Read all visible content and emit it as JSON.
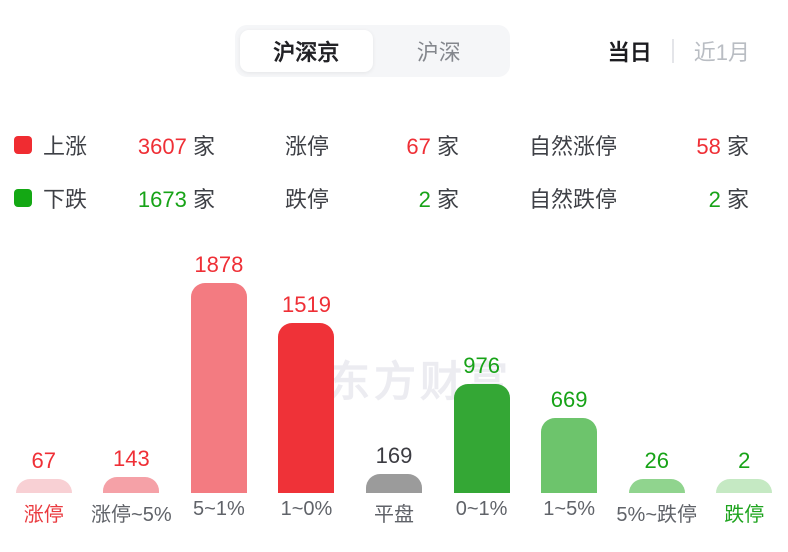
{
  "header": {
    "tabs": [
      {
        "label": "沪深京",
        "selected": true
      },
      {
        "label": "沪深",
        "selected": false
      }
    ],
    "period": {
      "current": "当日",
      "alternative": "近1月"
    }
  },
  "stats": {
    "unit": "家",
    "up_color": "#EF2F36",
    "down_color": "#17A317",
    "rows": [
      {
        "swatch": "up-swatch",
        "swatch_color": "#F02C31",
        "label": "上涨",
        "value": "3607",
        "col2_label": "涨停",
        "col2_value": "67",
        "col3_label": "自然涨停",
        "col3_value": "58"
      },
      {
        "swatch": "down-swatch",
        "swatch_color": "#14A814",
        "label": "下跌",
        "value": "1673",
        "col2_label": "跌停",
        "col2_value": "2",
        "col3_label": "自然跌停",
        "col3_value": "2"
      }
    ]
  },
  "watermark": "东方财富",
  "chart_data": {
    "type": "bar",
    "title": "",
    "xlabel": "",
    "ylabel": "",
    "categories": [
      "涨停",
      "涨停~5%",
      "5~1%",
      "1~0%",
      "平盘",
      "0~1%",
      "1~5%",
      "5%~跌停",
      "跌停"
    ],
    "values": [
      67,
      143,
      1878,
      1519,
      169,
      976,
      669,
      26,
      2
    ],
    "bar_colors": [
      "#F8D0D4",
      "#F5A1A7",
      "#F37B81",
      "#EF3238",
      "#9B9B9B",
      "#34A735",
      "#6DC46C",
      "#90D48E",
      "#C5E9C3"
    ],
    "value_colors": [
      "#EF2F36",
      "#EF2F36",
      "#EF2F36",
      "#EF2F36",
      "#3C3C42",
      "#17A317",
      "#17A317",
      "#17A317",
      "#17A317"
    ],
    "label_colors": [
      "#EA3A3F",
      "#606369",
      "#606369",
      "#606369",
      "#606369",
      "#606369",
      "#606369",
      "#606369",
      "#1FA41F"
    ],
    "ylim": [
      0,
      1878
    ],
    "grid": false,
    "legend": "none",
    "watermark_text": "东方财富"
  }
}
